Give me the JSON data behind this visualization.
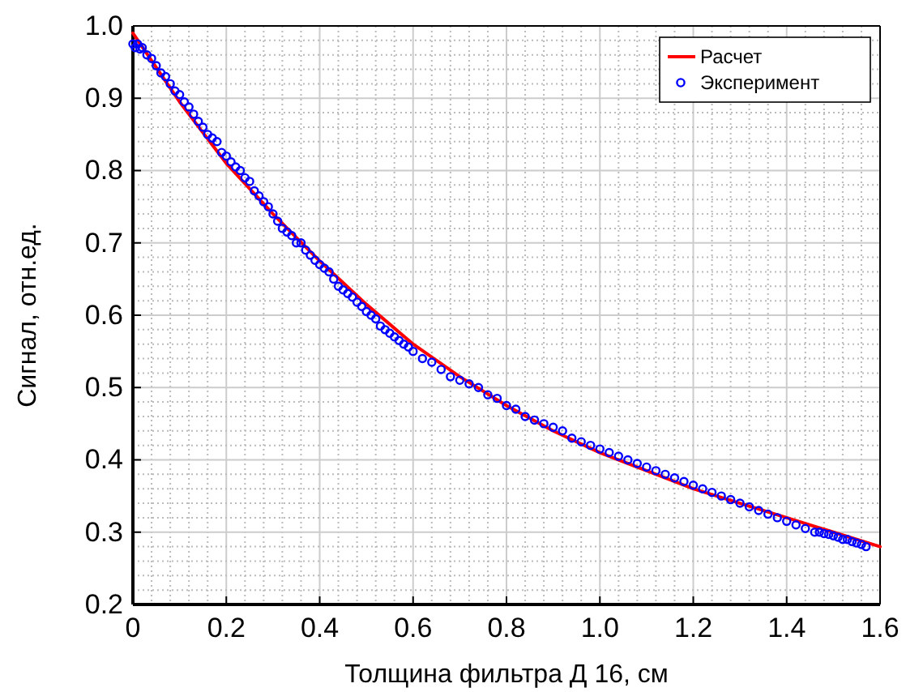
{
  "chart_data": {
    "type": "line",
    "xlabel": "Толщина фильтра Д 16, см",
    "ylabel": "Сигнал, отн.ед.",
    "xlim": [
      0,
      1.6
    ],
    "xticks": [
      0,
      0.2,
      0.4,
      0.6,
      0.8,
      {
        "value": 1,
        "label": "1.0"
      },
      1.2,
      1.4,
      1.6
    ],
    "ylim": [
      0.2,
      1.0
    ],
    "yticks": [
      0.2,
      0.3,
      0.4,
      0.5,
      0.6,
      0.7,
      0.8,
      0.9,
      {
        "value": 1,
        "label": "1.0"
      }
    ],
    "grid": true,
    "legend": "top right",
    "series": [
      {
        "name": "Расчет",
        "color": "#ff0000",
        "marker": "none",
        "line_style": "solid",
        "x": [
          0,
          0.1,
          0.2,
          0.3,
          0.4,
          0.5,
          0.6,
          0.7,
          0.8,
          0.9,
          1.0,
          1.1,
          1.2,
          1.3,
          1.4,
          1.5,
          1.6
        ],
        "values": [
          0.99,
          0.895,
          0.81,
          0.74,
          0.675,
          0.615,
          0.56,
          0.515,
          0.475,
          0.44,
          0.41,
          0.385,
          0.36,
          0.34,
          0.32,
          0.3,
          0.28
        ]
      },
      {
        "name": "Эксперимент",
        "type": "scatter",
        "color": "#0000ff",
        "marker": "circle",
        "x": [
          0,
          0.005,
          0.01,
          0.015,
          0.02,
          0.03,
          0.04,
          0.05,
          0.06,
          0.07,
          0.08,
          0.09,
          0.1,
          0.11,
          0.12,
          0.13,
          0.14,
          0.15,
          0.16,
          0.17,
          0.18,
          0.19,
          0.2,
          0.21,
          0.22,
          0.23,
          0.24,
          0.25,
          0.26,
          0.27,
          0.28,
          0.29,
          0.3,
          0.31,
          0.32,
          0.33,
          0.34,
          0.35,
          0.36,
          0.37,
          0.38,
          0.39,
          0.4,
          0.41,
          0.42,
          0.43,
          0.44,
          0.45,
          0.46,
          0.47,
          0.48,
          0.49,
          0.5,
          0.51,
          0.52,
          0.53,
          0.54,
          0.55,
          0.56,
          0.57,
          0.58,
          0.59,
          0.6,
          0.62,
          0.64,
          0.66,
          0.68,
          0.7,
          0.72,
          0.74,
          0.76,
          0.78,
          0.8,
          0.82,
          0.84,
          0.86,
          0.88,
          0.9,
          0.92,
          0.94,
          0.96,
          0.98,
          1.0,
          1.02,
          1.04,
          1.06,
          1.08,
          1.1,
          1.12,
          1.14,
          1.16,
          1.18,
          1.2,
          1.22,
          1.24,
          1.26,
          1.28,
          1.3,
          1.32,
          1.34,
          1.36,
          1.38,
          1.4,
          1.42,
          1.44,
          1.46,
          1.47,
          1.48,
          1.49,
          1.5,
          1.51,
          1.52,
          1.53,
          1.54,
          1.55,
          1.56,
          1.57
        ],
        "values": [
          0.975,
          0.97,
          0.975,
          0.968,
          0.97,
          0.96,
          0.955,
          0.945,
          0.935,
          0.93,
          0.92,
          0.91,
          0.905,
          0.895,
          0.888,
          0.878,
          0.868,
          0.86,
          0.85,
          0.845,
          0.84,
          0.825,
          0.82,
          0.812,
          0.805,
          0.8,
          0.79,
          0.785,
          0.772,
          0.765,
          0.757,
          0.75,
          0.74,
          0.73,
          0.72,
          0.715,
          0.71,
          0.7,
          0.7,
          0.69,
          0.683,
          0.676,
          0.67,
          0.665,
          0.66,
          0.65,
          0.64,
          0.635,
          0.63,
          0.625,
          0.618,
          0.612,
          0.605,
          0.6,
          0.595,
          0.585,
          0.58,
          0.575,
          0.57,
          0.565,
          0.56,
          0.556,
          0.55,
          0.54,
          0.535,
          0.525,
          0.515,
          0.51,
          0.505,
          0.5,
          0.49,
          0.485,
          0.475,
          0.47,
          0.46,
          0.455,
          0.45,
          0.445,
          0.44,
          0.43,
          0.425,
          0.42,
          0.415,
          0.41,
          0.405,
          0.4,
          0.395,
          0.39,
          0.385,
          0.38,
          0.375,
          0.37,
          0.365,
          0.36,
          0.355,
          0.35,
          0.345,
          0.34,
          0.335,
          0.33,
          0.325,
          0.32,
          0.315,
          0.31,
          0.305,
          0.3,
          0.3,
          0.298,
          0.297,
          0.295,
          0.293,
          0.29,
          0.29,
          0.287,
          0.285,
          0.283,
          0.28
        ]
      }
    ]
  }
}
